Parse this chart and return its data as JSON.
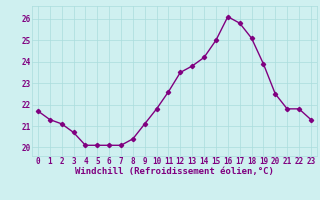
{
  "x": [
    0,
    1,
    2,
    3,
    4,
    5,
    6,
    7,
    8,
    9,
    10,
    11,
    12,
    13,
    14,
    15,
    16,
    17,
    18,
    19,
    20,
    21,
    22,
    23
  ],
  "y": [
    21.7,
    21.3,
    21.1,
    20.7,
    20.1,
    20.1,
    20.1,
    20.1,
    20.4,
    21.1,
    21.8,
    22.6,
    23.5,
    23.8,
    24.2,
    25.0,
    26.1,
    25.8,
    25.1,
    23.9,
    22.5,
    21.8,
    21.8,
    21.3
  ],
  "ylim": [
    19.6,
    26.6
  ],
  "xlim": [
    -0.5,
    23.5
  ],
  "yticks": [
    20,
    21,
    22,
    23,
    24,
    25,
    26
  ],
  "xticks": [
    0,
    1,
    2,
    3,
    4,
    5,
    6,
    7,
    8,
    9,
    10,
    11,
    12,
    13,
    14,
    15,
    16,
    17,
    18,
    19,
    20,
    21,
    22,
    23
  ],
  "xlabel": "Windchill (Refroidissement éolien,°C)",
  "line_color": "#800080",
  "marker": "D",
  "marker_size": 2.2,
  "line_width": 1.0,
  "bg_color": "#cff0f0",
  "grid_color": "#aadddd",
  "tick_color": "#800080",
  "label_color": "#800080",
  "tick_fontsize": 5.5,
  "xlabel_fontsize": 6.5
}
